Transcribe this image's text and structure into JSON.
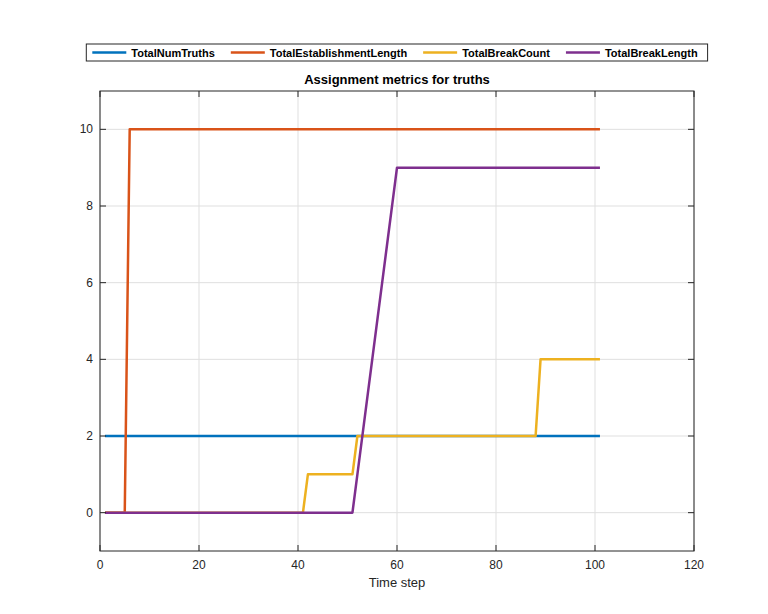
{
  "chart_data": {
    "type": "line",
    "title": "Assignment metrics for truths",
    "x_label": "Time step",
    "x": [
      1,
      5,
      6,
      41,
      42,
      51,
      52,
      60,
      88,
      89,
      101
    ],
    "series": [
      {
        "name": "TotalNumTruths",
        "color": "#0072bd",
        "values": [
          2,
          2,
          2,
          2,
          2,
          2,
          2,
          2,
          2,
          2,
          2
        ]
      },
      {
        "name": "TotalEstablishmentLength",
        "color": "#d95319",
        "values": [
          0,
          0,
          10,
          10,
          10,
          10,
          10,
          10,
          10,
          10,
          10
        ]
      },
      {
        "name": "TotalBreakCount",
        "color": "#edb120",
        "values": [
          0,
          0,
          0,
          0,
          1,
          1,
          2,
          2,
          2,
          4,
          4
        ]
      },
      {
        "name": "TotalBreakLength",
        "color": "#7e2f8e",
        "values": [
          0,
          0,
          0,
          0,
          0,
          0,
          1,
          9,
          9,
          9,
          9
        ]
      }
    ],
    "xlim": [
      0,
      120
    ],
    "xticks": [
      0,
      20,
      40,
      60,
      80,
      100,
      120
    ],
    "ylim": [
      -1,
      11
    ],
    "yticks": [
      0,
      2,
      4,
      6,
      8,
      10
    ],
    "grid": true,
    "legend": "top"
  }
}
